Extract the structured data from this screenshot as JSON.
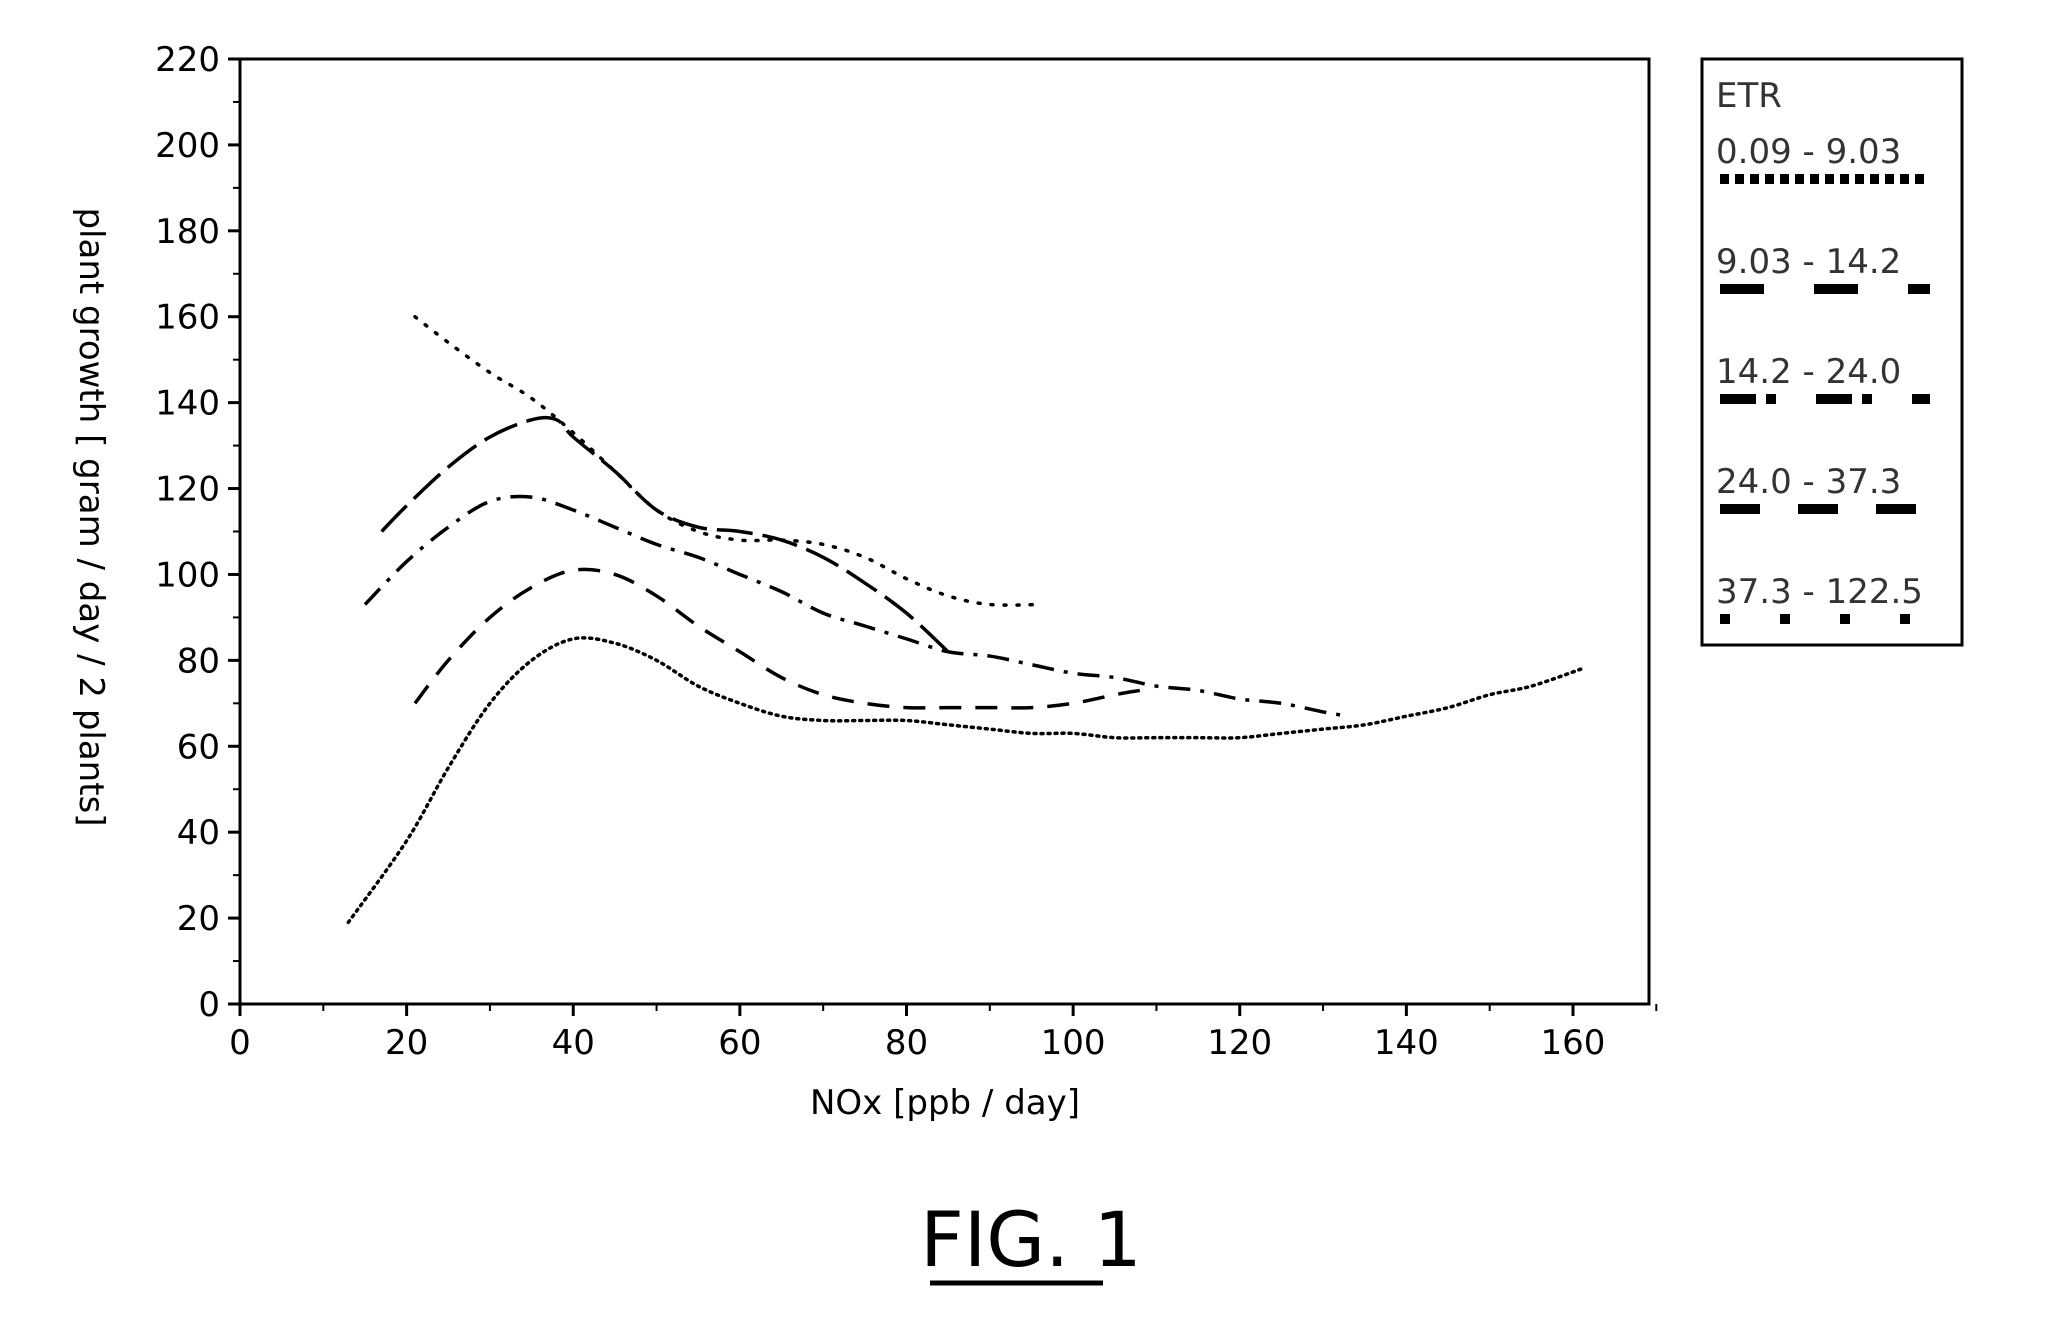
{
  "figure_label": "FIG. 1",
  "chart_data": {
    "type": "line",
    "xlabel": "NOx [ppb / day]",
    "ylabel": "plant growth [ gram / day / 2 plants]",
    "xlim": [
      0,
      170
    ],
    "ylim": [
      0,
      220
    ],
    "x_ticks": [
      "0",
      "20",
      "40",
      "60",
      "80",
      "100",
      "120",
      "140",
      "160"
    ],
    "y_ticks": [
      "0",
      "20",
      "40",
      "60",
      "80",
      "100",
      "120",
      "140",
      "160",
      "180",
      "200",
      "220"
    ],
    "grid": false,
    "legend": {
      "title": "ETR",
      "placement": "right-outside",
      "entries": [
        "0.09 - 9.03",
        "9.03 - 14.2",
        "14.2 - 24.0",
        "24.0 - 37.3",
        "37.3 - 122.5"
      ]
    },
    "series": [
      {
        "name": "0.09 - 9.03",
        "style": "dotted",
        "points": [
          [
            13,
            19
          ],
          [
            20,
            38
          ],
          [
            25,
            55
          ],
          [
            30,
            70
          ],
          [
            35,
            80
          ],
          [
            40,
            85
          ],
          [
            45,
            84
          ],
          [
            50,
            80
          ],
          [
            55,
            74
          ],
          [
            60,
            70
          ],
          [
            65,
            67
          ],
          [
            70,
            66
          ],
          [
            75,
            66
          ],
          [
            80,
            66
          ],
          [
            85,
            65
          ],
          [
            90,
            64
          ],
          [
            95,
            63
          ],
          [
            100,
            63
          ],
          [
            105,
            62
          ],
          [
            110,
            62
          ],
          [
            115,
            62
          ],
          [
            120,
            62
          ],
          [
            125,
            63
          ],
          [
            130,
            64
          ],
          [
            135,
            65
          ],
          [
            140,
            67
          ],
          [
            145,
            69
          ],
          [
            150,
            72
          ],
          [
            155,
            74
          ],
          [
            161,
            78
          ]
        ]
      },
      {
        "name": "9.03 - 14.2",
        "style": "dashed",
        "points": [
          [
            21,
            70
          ],
          [
            25,
            80
          ],
          [
            30,
            90
          ],
          [
            35,
            97
          ],
          [
            40,
            101
          ],
          [
            45,
            100
          ],
          [
            50,
            95
          ],
          [
            55,
            88
          ],
          [
            60,
            82
          ],
          [
            65,
            76
          ],
          [
            70,
            72
          ],
          [
            75,
            70
          ],
          [
            80,
            69
          ],
          [
            85,
            69
          ],
          [
            90,
            69
          ],
          [
            95,
            69
          ],
          [
            100,
            70
          ],
          [
            105,
            72
          ],
          [
            108,
            73
          ]
        ]
      },
      {
        "name": "14.2 - 24.0",
        "style": "dashdot",
        "points": [
          [
            15,
            93
          ],
          [
            20,
            103
          ],
          [
            25,
            111
          ],
          [
            30,
            117
          ],
          [
            35,
            118
          ],
          [
            40,
            115
          ],
          [
            45,
            111
          ],
          [
            50,
            107
          ],
          [
            55,
            104
          ],
          [
            60,
            100
          ],
          [
            65,
            96
          ],
          [
            70,
            91
          ],
          [
            75,
            88
          ],
          [
            80,
            85
          ],
          [
            85,
            82
          ],
          [
            90,
            81
          ],
          [
            95,
            79
          ],
          [
            100,
            77
          ],
          [
            105,
            76
          ],
          [
            110,
            74
          ],
          [
            115,
            73
          ],
          [
            120,
            71
          ],
          [
            125,
            70
          ],
          [
            130,
            68
          ],
          [
            133,
            67
          ]
        ]
      },
      {
        "name": "24.0 - 37.3",
        "style": "longdash",
        "points": [
          [
            17,
            110
          ],
          [
            20,
            116
          ],
          [
            25,
            125
          ],
          [
            30,
            132
          ],
          [
            35,
            136
          ],
          [
            38,
            136
          ],
          [
            40,
            132
          ],
          [
            45,
            124
          ],
          [
            50,
            115
          ],
          [
            55,
            111
          ],
          [
            60,
            110
          ],
          [
            65,
            108
          ],
          [
            70,
            104
          ],
          [
            75,
            98
          ],
          [
            80,
            91
          ],
          [
            85,
            82
          ]
        ]
      },
      {
        "name": "37.3 - 122.5",
        "style": "sparse-dotted",
        "points": [
          [
            21,
            160
          ],
          [
            25,
            154
          ],
          [
            30,
            147
          ],
          [
            35,
            141
          ],
          [
            40,
            133
          ],
          [
            45,
            124
          ],
          [
            50,
            115
          ],
          [
            55,
            110
          ],
          [
            60,
            108
          ],
          [
            65,
            108
          ],
          [
            70,
            107
          ],
          [
            75,
            104
          ],
          [
            80,
            99
          ],
          [
            85,
            95
          ],
          [
            90,
            93
          ],
          [
            96,
            93
          ]
        ]
      }
    ]
  }
}
